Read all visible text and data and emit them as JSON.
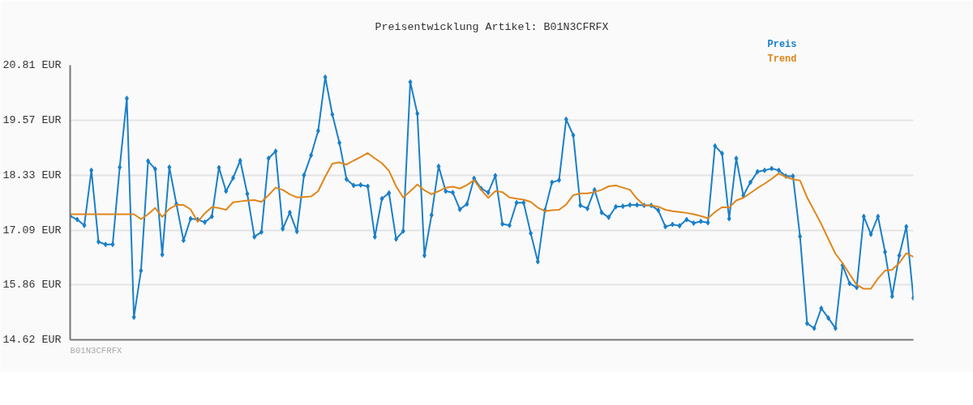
{
  "chart_data": {
    "type": "line",
    "title": "Preisentwicklung Artikel: B01N3CFRFX",
    "categories": [
      null,
      null,
      null,
      null,
      null,
      null,
      null,
      null,
      null,
      null,
      null,
      null,
      null,
      null,
      null,
      null,
      null,
      null,
      null,
      null,
      null,
      null,
      null,
      null,
      null,
      null,
      null,
      null,
      null,
      null,
      null,
      null,
      null,
      null,
      null,
      null,
      null,
      null,
      null,
      null,
      null,
      null,
      null,
      null,
      null,
      null,
      null,
      null,
      null,
      null,
      null,
      null,
      null,
      null,
      null,
      null,
      null,
      null,
      null,
      null,
      null,
      null,
      null,
      null,
      null,
      null,
      null,
      null,
      null,
      null,
      null,
      null,
      null,
      null,
      null,
      null,
      null,
      null,
      null,
      null,
      null,
      null,
      null,
      null,
      null,
      null,
      null,
      null,
      null,
      null,
      null,
      null,
      null,
      null,
      null,
      null,
      null,
      null,
      null,
      null,
      null,
      null,
      null,
      null,
      null,
      null,
      null,
      null,
      null,
      null,
      null,
      null,
      null,
      null,
      null,
      null,
      null,
      null,
      null,
      null
    ],
    "series": [
      {
        "name": "Preis",
        "color": "#1a7fc9",
        "marker": "diamond",
        "values": [
          17.41,
          17.33,
          17.2,
          18.44,
          16.83,
          16.77,
          16.77,
          18.51,
          20.06,
          15.13,
          16.18,
          18.65,
          18.47,
          16.54,
          18.51,
          17.68,
          16.86,
          17.35,
          17.33,
          17.27,
          17.4,
          18.5,
          17.97,
          18.27,
          18.66,
          17.91,
          16.94,
          17.05,
          18.71,
          18.87,
          17.12,
          17.49,
          17.06,
          18.33,
          18.78,
          19.33,
          20.54,
          19.7,
          19.06,
          18.24,
          18.1,
          18.11,
          18.08,
          16.94,
          17.8,
          17.93,
          16.89,
          17.07,
          20.43,
          19.72,
          16.52,
          17.43,
          18.53,
          17.97,
          17.94,
          17.56,
          17.68,
          18.26,
          18.03,
          17.94,
          18.32,
          17.23,
          17.2,
          17.71,
          17.71,
          17.02,
          16.38,
          17.54,
          18.17,
          18.22,
          19.59,
          19.23,
          17.65,
          17.58,
          18.0,
          17.49,
          17.38,
          17.62,
          17.63,
          17.66,
          17.66,
          17.65,
          17.65,
          17.54,
          17.17,
          17.22,
          17.19,
          17.33,
          17.25,
          17.29,
          17.26,
          18.99,
          18.82,
          17.35,
          18.71,
          17.87,
          18.17,
          18.41,
          18.44,
          18.48,
          18.44,
          18.31,
          18.31,
          16.95,
          14.99,
          14.88,
          15.33,
          15.11,
          14.88,
          16.3,
          15.89,
          15.8,
          17.4,
          17.0,
          17.4,
          16.6,
          15.6,
          16.52,
          17.17,
          15.56
        ]
      },
      {
        "name": "Trend",
        "color": "#e0861a",
        "values": [
          17.45,
          17.45,
          17.45,
          17.45,
          17.45,
          17.45,
          17.45,
          17.45,
          17.45,
          17.45,
          17.34,
          17.45,
          17.59,
          17.39,
          17.57,
          17.66,
          17.66,
          17.56,
          17.28,
          17.47,
          17.61,
          17.59,
          17.55,
          17.72,
          17.74,
          17.76,
          17.77,
          17.73,
          17.88,
          18.05,
          18.0,
          17.9,
          17.83,
          17.84,
          17.85,
          17.97,
          18.3,
          18.59,
          18.62,
          18.57,
          18.66,
          18.74,
          18.83,
          18.71,
          18.6,
          18.43,
          18.08,
          17.83,
          17.97,
          18.12,
          17.99,
          17.9,
          17.97,
          18.05,
          18.07,
          18.03,
          18.11,
          18.22,
          18.0,
          17.82,
          17.97,
          17.95,
          17.83,
          17.8,
          17.78,
          17.73,
          17.6,
          17.52,
          17.54,
          17.55,
          17.67,
          17.88,
          17.92,
          17.92,
          17.95,
          18.0,
          18.08,
          18.1,
          18.05,
          18.0,
          17.8,
          17.65,
          17.65,
          17.62,
          17.55,
          17.52,
          17.5,
          17.48,
          17.45,
          17.41,
          17.36,
          17.5,
          17.61,
          17.6,
          17.76,
          17.82,
          17.93,
          18.04,
          18.14,
          18.25,
          18.37,
          18.29,
          18.24,
          18.21,
          17.83,
          17.53,
          17.23,
          16.89,
          16.56,
          16.35,
          16.1,
          15.86,
          15.77,
          15.77,
          16.0,
          16.18,
          16.2,
          16.35,
          16.57,
          16.49
        ]
      }
    ],
    "ylim": [
      14.62,
      20.81
    ],
    "yticks": [
      {
        "value": 14.62,
        "label": "14.62 EUR"
      },
      {
        "value": 15.86,
        "label": "15.86 EUR"
      },
      {
        "value": 17.09,
        "label": "17.09 EUR"
      },
      {
        "value": 18.33,
        "label": "18.33 EUR"
      },
      {
        "value": 19.57,
        "label": "19.57 EUR"
      },
      {
        "value": 20.81,
        "label": "20.81 EUR"
      }
    ],
    "grid": "y",
    "tick_labels": "y",
    "annotations": [
      "B01N3CFRFX"
    ]
  }
}
